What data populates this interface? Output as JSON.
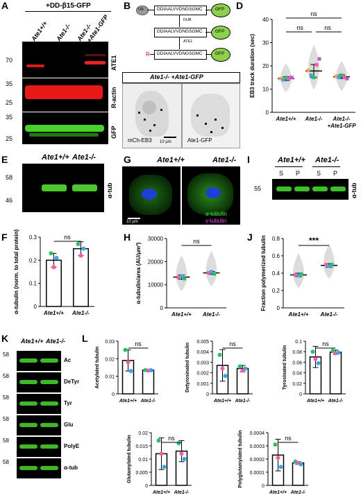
{
  "panels": {
    "A": {
      "label": "A",
      "header": "+DD-β15-GFP",
      "lanes": [
        "Ate1+/+",
        "Ate1-/-",
        "Ate1-/-",
        "+Ate1-GFP"
      ],
      "markers": [
        "70",
        "35",
        "25",
        "35",
        "25"
      ],
      "rows": [
        "ATE1",
        "R-actin",
        "GFP"
      ]
    },
    "B": {
      "label": "B",
      "ub": "Ub",
      "seq": "DDIAALVVDNGSGMC",
      "gfp": "GFP",
      "dub": "DUB",
      "ate1": "ATE1",
      "r": "R"
    },
    "C": {
      "label": "C",
      "title": "Ate1-/- +Ate1-GFP",
      "left_caption": "mCh-EB3",
      "scale": "10 μm",
      "right_caption": "Ate1-GFP"
    },
    "D": {
      "label": "D"
    },
    "E": {
      "label": "E",
      "lanes": [
        "Ate1+/+",
        "Ate1-/-"
      ],
      "markers": [
        "58",
        "46"
      ],
      "row": "α-tub"
    },
    "F": {
      "label": "F"
    },
    "G": {
      "label": "G",
      "lanes": [
        "Ate1+/+",
        "Ate1-/-"
      ],
      "legend1": "α-tubulin",
      "legend2": "γ-tubulin",
      "scale": "10 μm"
    },
    "H": {
      "label": "H"
    },
    "I": {
      "label": "I",
      "lanes": [
        "Ate1+/+",
        "Ate1-/-"
      ],
      "sp": [
        "S",
        "P",
        "S",
        "P"
      ],
      "marker": "55",
      "row": "α-tub"
    },
    "J": {
      "label": "J"
    },
    "K": {
      "label": "K",
      "lanes": [
        "Ate1+/+",
        "Ate1-/-"
      ],
      "marker": "58",
      "rows": [
        "Ac",
        "DeTyr",
        "Tyr",
        "Glu",
        "PolyE",
        "α-tub"
      ]
    },
    "L": {
      "label": "L"
    }
  },
  "chart_data": [
    {
      "panel": "D",
      "type": "scatter",
      "ylabel": "EB3 track duration (sec)",
      "categories": [
        "Ate1+/+",
        "Ate1-/-",
        "Ate1-/- +Ate1-GFP"
      ],
      "ylim": [
        0,
        40
      ],
      "yticks": [
        0,
        10,
        20,
        30,
        40
      ],
      "points": [
        [
          14.5,
          14,
          15,
          14.5,
          15
        ],
        [
          18,
          16,
          15,
          20.5,
          23
        ],
        [
          15.5,
          15,
          16,
          15,
          14.5
        ]
      ],
      "point_colors": [
        "#f4a14b",
        "#3da4e8",
        "#27c06a",
        "#ff5aa8",
        "#b65cd4"
      ],
      "means": [
        14.5,
        17.8,
        15.3
      ],
      "errors": [
        0.8,
        2.8,
        0.8
      ],
      "annotations": [
        "ns",
        "ns",
        "ns"
      ]
    },
    {
      "panel": "F",
      "type": "bar",
      "ylabel": "α-tubulin (norm. to total protein)",
      "categories": [
        "Ate1+/+",
        "Ate1-/-"
      ],
      "values": [
        0.2,
        0.25
      ],
      "errors": [
        0.03,
        0.03
      ],
      "ylim": [
        0,
        0.3
      ],
      "yticks": [
        0,
        0.1,
        0.2,
        0.3
      ],
      "points": [
        [
          0.23,
          0.17,
          0.21
        ],
        [
          0.27,
          0.22,
          0.25
        ]
      ],
      "annotation": "ns"
    },
    {
      "panel": "H",
      "type": "scatter",
      "ylabel": "α-tubulin/area (AU/μm²)",
      "categories": [
        "Ate1+/+",
        "Ate1-/-"
      ],
      "ylim": [
        0,
        30000
      ],
      "yticks": [
        0,
        10000,
        20000,
        30000
      ],
      "points": [
        [
          13200,
          13800,
          12600
        ],
        [
          15200,
          15600,
          14700
        ]
      ],
      "means": [
        13300,
        15100
      ],
      "errors": [
        900,
        600
      ],
      "annotation": "ns"
    },
    {
      "panel": "J",
      "type": "scatter",
      "ylabel": "Fraction polymerized tubulin",
      "categories": [
        "Ate1+/+",
        "Ate1-/-"
      ],
      "ylim": [
        0,
        0.8
      ],
      "yticks": [
        0,
        0.2,
        0.4,
        0.6,
        0.8
      ],
      "points": [
        [
          0.38,
          0.37,
          0.39
        ],
        [
          0.5,
          0.48,
          0.5
        ]
      ],
      "means": [
        0.38,
        0.49
      ],
      "errors": [
        0.02,
        0.02
      ],
      "annotation": "***"
    },
    {
      "panel": "L",
      "type": "bar",
      "ylabel": "Acetylated tubulin",
      "categories": [
        "Ate1+/+",
        "Ate1-/-"
      ],
      "values": [
        0.019,
        0.0135
      ],
      "errors": [
        0.006,
        0.0005
      ],
      "ylim": [
        0,
        0.03
      ],
      "yticks": [
        0,
        0.01,
        0.02,
        0.03
      ],
      "points": [
        [
          0.025,
          0.018,
          0.013
        ],
        [
          0.0135,
          0.0132,
          0.0134
        ]
      ],
      "annotation": "ns"
    },
    {
      "panel": "L",
      "type": "bar",
      "ylabel": "Detyrosinated tubulin",
      "categories": [
        "Ate1+/+",
        "Ate1-/-"
      ],
      "values": [
        0.0027,
        0.0024
      ],
      "errors": [
        0.0015,
        0.0003
      ],
      "ylim": [
        0,
        0.005
      ],
      "yticks": [
        0,
        0.001,
        0.002,
        0.003,
        0.004,
        0.005
      ],
      "points": [
        [
          0.0037,
          0.0024,
          0.0017
        ],
        [
          0.0026,
          0.0022,
          0.0024
        ]
      ],
      "annotation": "ns"
    },
    {
      "panel": "L",
      "type": "bar",
      "ylabel": "Tyrosinated tubulin",
      "categories": [
        "Ate1+/+",
        "Ate1-/-"
      ],
      "values": [
        0.07,
        0.079
      ],
      "errors": [
        0.02,
        0.004
      ],
      "ylim": [
        0,
        0.1
      ],
      "yticks": [
        0,
        0.02,
        0.04,
        0.06,
        0.08,
        0.1
      ],
      "points": [
        [
          0.08,
          0.066,
          0.058
        ],
        [
          0.082,
          0.077,
          0.078
        ]
      ],
      "annotation": "ns"
    },
    {
      "panel": "L",
      "type": "bar",
      "ylabel": "Glutamylated tubulin",
      "categories": [
        "Ate1+/+",
        "Ate1-/-"
      ],
      "values": [
        0.012,
        0.013
      ],
      "errors": [
        0.006,
        0.004
      ],
      "ylim": [
        0,
        0.02
      ],
      "yticks": [
        0,
        0.005,
        0.01,
        0.015,
        0.02
      ],
      "points": [
        [
          0.017,
          0.012,
          0.007
        ],
        [
          0.016,
          0.012,
          0.01
        ]
      ],
      "annotation": "ns"
    },
    {
      "panel": "L",
      "type": "bar",
      "ylabel": "Polyglutamylated tubulin",
      "categories": [
        "Ate1+/+",
        "Ate1-/-"
      ],
      "values": [
        0.00023,
        0.00017
      ],
      "errors": [
        0.00012,
        1e-05
      ],
      "ylim": [
        0,
        0.0004
      ],
      "yticks": [
        0,
        0.0001,
        0.0002,
        0.0003,
        0.0004
      ],
      "points": [
        [
          0.00031,
          0.00021,
          0.00014
        ],
        [
          0.00018,
          0.00017,
          0.00016
        ]
      ],
      "annotation": "ns"
    }
  ]
}
